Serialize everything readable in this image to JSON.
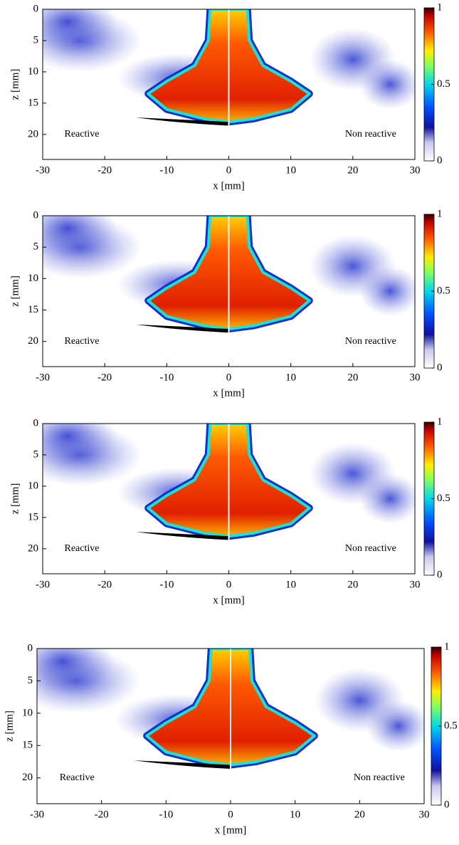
{
  "chart_data": [
    {
      "type": "heatmap",
      "xlabel": "x [mm]",
      "ylabel": "z [mm]",
      "xlim": [
        -30,
        30
      ],
      "ylim": [
        0,
        24
      ],
      "xticks": [
        -30,
        -20,
        -10,
        0,
        10,
        20,
        30
      ],
      "yticks": [
        0,
        5,
        10,
        15,
        20
      ],
      "colorbar_lim": [
        0,
        1
      ],
      "colorbar_ticks": [
        0,
        0.5,
        1
      ],
      "left_label": "Reactive",
      "right_label": "Non reactive"
    },
    {
      "type": "heatmap",
      "xlabel": "x [mm]",
      "ylabel": "z [mm]",
      "xlim": [
        -30,
        30
      ],
      "ylim": [
        0,
        24
      ],
      "xticks": [
        -30,
        -20,
        -10,
        0,
        10,
        20,
        30
      ],
      "yticks": [
        0,
        5,
        10,
        15,
        20
      ],
      "colorbar_lim": [
        0,
        1
      ],
      "colorbar_ticks": [
        0,
        0.5,
        1
      ],
      "left_label": "Reactive",
      "right_label": "Non reactive"
    },
    {
      "type": "heatmap",
      "xlabel": "x [mm]",
      "ylabel": "z [mm]",
      "xlim": [
        -30,
        30
      ],
      "ylim": [
        0,
        24
      ],
      "xticks": [
        -30,
        -20,
        -10,
        0,
        10,
        20,
        30
      ],
      "yticks": [
        0,
        5,
        10,
        15,
        20
      ],
      "colorbar_lim": [
        0,
        1
      ],
      "colorbar_ticks": [
        0,
        0.5,
        1
      ],
      "left_label": "Reactive",
      "right_label": "Non reactive"
    },
    {
      "type": "heatmap",
      "xlabel": "x [mm]",
      "ylabel": "z [mm]",
      "xlim": [
        -30,
        30
      ],
      "ylim": [
        0,
        24
      ],
      "xticks": [
        -30,
        -20,
        -10,
        0,
        10,
        20,
        30
      ],
      "yticks": [
        0,
        5,
        10,
        15,
        20
      ],
      "colorbar_lim": [
        0,
        1
      ],
      "colorbar_ticks": [
        0,
        0.5,
        1
      ],
      "left_label": "Reactive",
      "right_label": "Non reactive"
    }
  ]
}
